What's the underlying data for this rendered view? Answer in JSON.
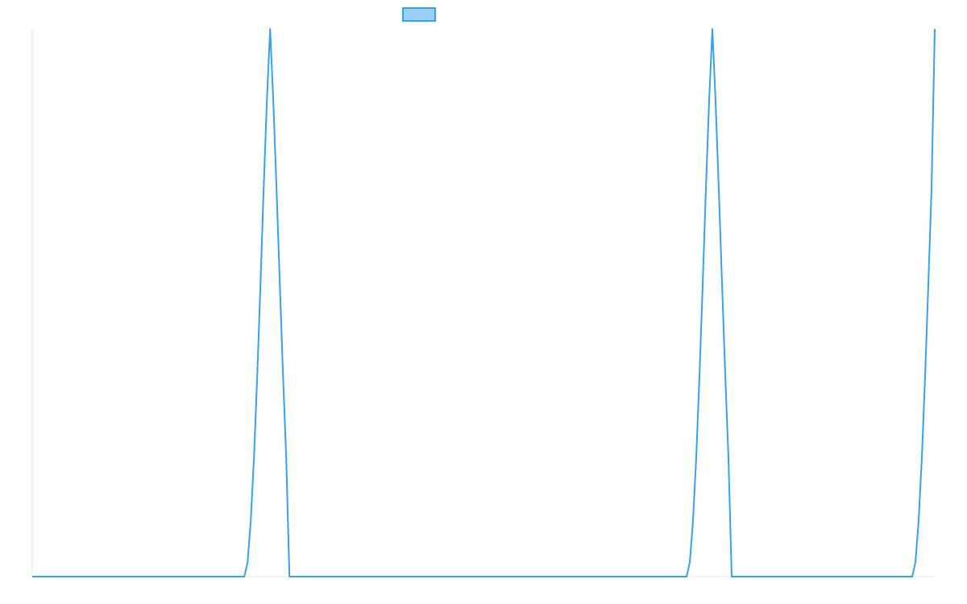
{
  "chart_data": {
    "type": "line",
    "title": "",
    "xlabel": "",
    "ylabel": "",
    "grid": false,
    "legend": {
      "placement": "top-center",
      "swatch_only": true
    },
    "xlim": [
      0,
      1000
    ],
    "ylim": [
      0,
      1
    ],
    "series": [
      {
        "color": "#36a2eb",
        "fill": "#9ad0f5",
        "x": [
          0,
          235.0,
          238.6,
          242.1,
          245.7,
          249.3,
          252.9,
          256.4,
          260.0,
          263.6,
          267.1,
          270.7,
          274.3,
          277.9,
          281.4,
          285.0,
          725.0,
          728.6,
          732.1,
          735.7,
          739.3,
          742.9,
          746.4,
          750.0,
          753.6,
          757.1,
          760.7,
          764.3,
          767.9,
          771.4,
          775.0,
          975.0,
          978.6,
          982.1,
          985.7,
          989.3,
          992.9,
          996.4,
          1000.0
        ],
        "y": [
          0,
          0,
          0.0262,
          0.1008,
          0.2176,
          0.3667,
          0.535,
          0.7076,
          0.8691,
          1.0,
          0.8691,
          0.7076,
          0.535,
          0.3667,
          0.2176,
          0.0,
          0,
          0.0262,
          0.1008,
          0.2176,
          0.3667,
          0.535,
          0.7076,
          0.8691,
          1.0,
          0.8691,
          0.7076,
          0.535,
          0.3667,
          0.2176,
          0.0,
          0,
          0.0262,
          0.1008,
          0.2176,
          0.3667,
          0.535,
          0.7076,
          1.0
        ]
      }
    ]
  }
}
